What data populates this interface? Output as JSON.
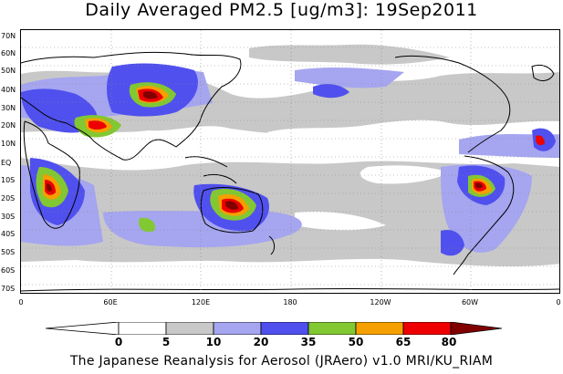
{
  "title": "Daily Averaged PM2.5 [ug/m3]: 19Sep2011",
  "credit": "The Japanese Reanalysis for Aerosol (JRAero) v1.0 MRI/KU_RIAM",
  "lat_labels": [
    "70N",
    "60N",
    "50N",
    "40N",
    "30N",
    "20N",
    "10N",
    "EQ",
    "10S",
    "20S",
    "30S",
    "40S",
    "50S",
    "60S",
    "70S"
  ],
  "lon_labels": [
    "0",
    "60E",
    "120E",
    "180",
    "120W",
    "60W",
    "0"
  ],
  "colorbar": {
    "ticks": [
      "0",
      "5",
      "10",
      "20",
      "35",
      "50",
      "65",
      "80"
    ],
    "bins": [
      {
        "range": "<0",
        "color": "#ffffff"
      },
      {
        "range": "0-5",
        "color": "#ffffff"
      },
      {
        "range": "5-10",
        "color": "#c8c8c8"
      },
      {
        "range": "10-20",
        "color": "#a5a5f0"
      },
      {
        "range": "20-35",
        "color": "#5050ee"
      },
      {
        "range": "35-50",
        "color": "#82c832"
      },
      {
        "range": "50-65",
        "color": "#f5a000"
      },
      {
        "range": "65-80",
        "color": "#ee0000"
      },
      {
        "range": ">80",
        "color": "#800000"
      }
    ]
  }
}
